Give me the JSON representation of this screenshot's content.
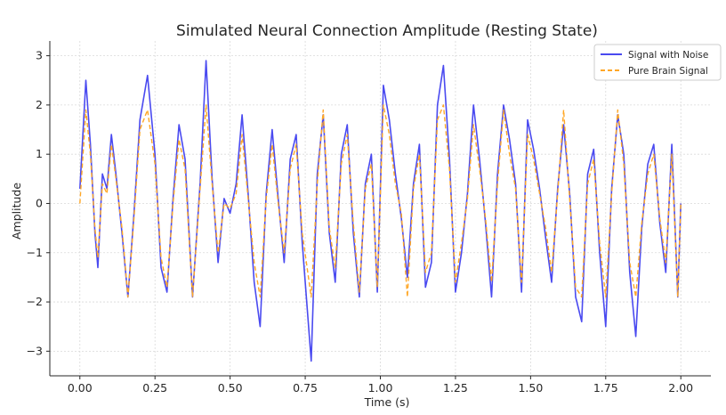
{
  "chart_data": {
    "type": "line",
    "title": "Simulated Neural Connection Amplitude (Resting State)",
    "xlabel": "Time (s)",
    "ylabel": "Amplitude",
    "xlim": [
      -0.1,
      2.1
    ],
    "ylim": [
      -3.5,
      3.3
    ],
    "xticks": [
      0.0,
      0.25,
      0.5,
      0.75,
      1.0,
      1.25,
      1.5,
      1.75,
      2.0
    ],
    "xtick_labels": [
      "0.00",
      "0.25",
      "0.50",
      "0.75",
      "1.00",
      "1.25",
      "1.50",
      "1.75",
      "2.00"
    ],
    "yticks": [
      -3,
      -2,
      -1,
      0,
      1,
      2,
      3
    ],
    "ytick_labels": [
      "−3",
      "−2",
      "−1",
      "0",
      "1",
      "2",
      "3"
    ],
    "grid": true,
    "legend_position": "top-right",
    "series": [
      {
        "name": "Signal with Noise",
        "color": "#4a4af0",
        "style": "solid",
        "x": [
          0.0,
          0.02,
          0.035,
          0.05,
          0.06,
          0.075,
          0.09,
          0.105,
          0.12,
          0.14,
          0.16,
          0.18,
          0.2,
          0.225,
          0.25,
          0.27,
          0.29,
          0.31,
          0.33,
          0.35,
          0.375,
          0.4,
          0.42,
          0.44,
          0.46,
          0.48,
          0.5,
          0.52,
          0.54,
          0.56,
          0.58,
          0.6,
          0.62,
          0.64,
          0.66,
          0.68,
          0.7,
          0.72,
          0.74,
          0.77,
          0.79,
          0.81,
          0.83,
          0.85,
          0.87,
          0.89,
          0.91,
          0.93,
          0.95,
          0.97,
          0.99,
          1.01,
          1.03,
          1.05,
          1.07,
          1.09,
          1.11,
          1.13,
          1.15,
          1.17,
          1.19,
          1.21,
          1.23,
          1.25,
          1.27,
          1.29,
          1.31,
          1.33,
          1.35,
          1.37,
          1.39,
          1.41,
          1.43,
          1.45,
          1.47,
          1.49,
          1.51,
          1.53,
          1.55,
          1.57,
          1.59,
          1.61,
          1.63,
          1.65,
          1.67,
          1.69,
          1.71,
          1.73,
          1.75,
          1.77,
          1.79,
          1.81,
          1.83,
          1.85,
          1.87,
          1.89,
          1.91,
          1.93,
          1.95,
          1.97,
          1.99,
          2.0
        ],
        "y": [
          0.3,
          2.5,
          1.2,
          -0.6,
          -1.3,
          0.6,
          0.3,
          1.4,
          0.6,
          -0.6,
          -1.9,
          -0.2,
          1.7,
          2.6,
          1.0,
          -1.3,
          -1.8,
          0.1,
          1.6,
          0.9,
          -1.9,
          0.4,
          2.9,
          0.5,
          -1.2,
          0.1,
          -0.2,
          0.4,
          1.8,
          0.2,
          -1.6,
          -2.5,
          0.2,
          1.5,
          0.1,
          -1.2,
          0.9,
          1.4,
          -0.8,
          -3.2,
          0.6,
          1.8,
          -0.6,
          -1.6,
          1.0,
          1.6,
          -0.6,
          -1.9,
          0.4,
          1.0,
          -1.8,
          2.4,
          1.7,
          0.6,
          -0.3,
          -1.5,
          0.4,
          1.2,
          -1.7,
          -1.2,
          2.0,
          2.8,
          0.9,
          -1.8,
          -1.0,
          0.2,
          2.0,
          0.9,
          -0.4,
          -1.9,
          0.6,
          2.0,
          1.3,
          0.4,
          -1.8,
          1.7,
          1.1,
          0.3,
          -0.7,
          -1.6,
          0.3,
          1.6,
          0.2,
          -1.9,
          -2.4,
          0.6,
          1.1,
          -1.0,
          -2.5,
          0.3,
          1.8,
          1.0,
          -1.4,
          -2.7,
          -0.5,
          0.8,
          1.2,
          -0.4,
          -1.4,
          1.2,
          -1.9,
          0.0
        ]
      },
      {
        "name": "Pure Brain Signal",
        "color": "#ffa726",
        "style": "dashed",
        "x": [
          0.0,
          0.02,
          0.035,
          0.05,
          0.06,
          0.075,
          0.09,
          0.105,
          0.12,
          0.14,
          0.16,
          0.18,
          0.2,
          0.225,
          0.25,
          0.27,
          0.29,
          0.31,
          0.33,
          0.35,
          0.375,
          0.4,
          0.42,
          0.44,
          0.46,
          0.48,
          0.5,
          0.52,
          0.54,
          0.56,
          0.58,
          0.6,
          0.62,
          0.64,
          0.66,
          0.68,
          0.7,
          0.72,
          0.74,
          0.77,
          0.79,
          0.81,
          0.83,
          0.85,
          0.87,
          0.89,
          0.91,
          0.93,
          0.95,
          0.97,
          0.99,
          1.01,
          1.03,
          1.05,
          1.07,
          1.09,
          1.11,
          1.13,
          1.15,
          1.17,
          1.19,
          1.21,
          1.23,
          1.25,
          1.27,
          1.29,
          1.31,
          1.33,
          1.35,
          1.37,
          1.39,
          1.41,
          1.43,
          1.45,
          1.47,
          1.49,
          1.51,
          1.53,
          1.55,
          1.57,
          1.59,
          1.61,
          1.63,
          1.65,
          1.67,
          1.69,
          1.71,
          1.73,
          1.75,
          1.77,
          1.79,
          1.81,
          1.83,
          1.85,
          1.87,
          1.89,
          1.91,
          1.93,
          1.95,
          1.97,
          1.99,
          2.0
        ],
        "y": [
          0.0,
          1.9,
          1.0,
          -0.5,
          -1.1,
          0.4,
          0.2,
          1.2,
          0.5,
          -0.5,
          -1.9,
          -0.3,
          1.5,
          1.9,
          0.8,
          -1.1,
          -1.7,
          0.0,
          1.3,
          0.7,
          -1.9,
          0.3,
          2.0,
          0.4,
          -1.0,
          0.0,
          -0.1,
          0.2,
          1.4,
          0.1,
          -1.2,
          -1.9,
          0.1,
          1.2,
          0.0,
          -1.0,
          0.7,
          1.2,
          -0.6,
          -1.9,
          0.4,
          1.9,
          -0.5,
          -1.3,
          0.8,
          1.4,
          -0.4,
          -1.8,
          0.3,
          0.8,
          -1.7,
          2.0,
          1.4,
          0.4,
          -0.2,
          -1.9,
          0.3,
          1.0,
          -1.4,
          -1.0,
          1.7,
          2.0,
          0.7,
          -1.6,
          -0.8,
          0.1,
          1.6,
          0.7,
          -0.3,
          -1.6,
          0.4,
          1.9,
          1.0,
          0.3,
          -1.6,
          1.4,
          0.9,
          0.2,
          -0.5,
          -1.4,
          0.2,
          1.9,
          0.1,
          -1.7,
          -1.9,
          0.4,
          0.9,
          -0.8,
          -1.9,
          0.2,
          1.9,
          0.8,
          -1.2,
          -1.9,
          -0.4,
          0.6,
          1.0,
          -0.3,
          -1.2,
          1.0,
          -1.9,
          0.0
        ]
      }
    ]
  }
}
